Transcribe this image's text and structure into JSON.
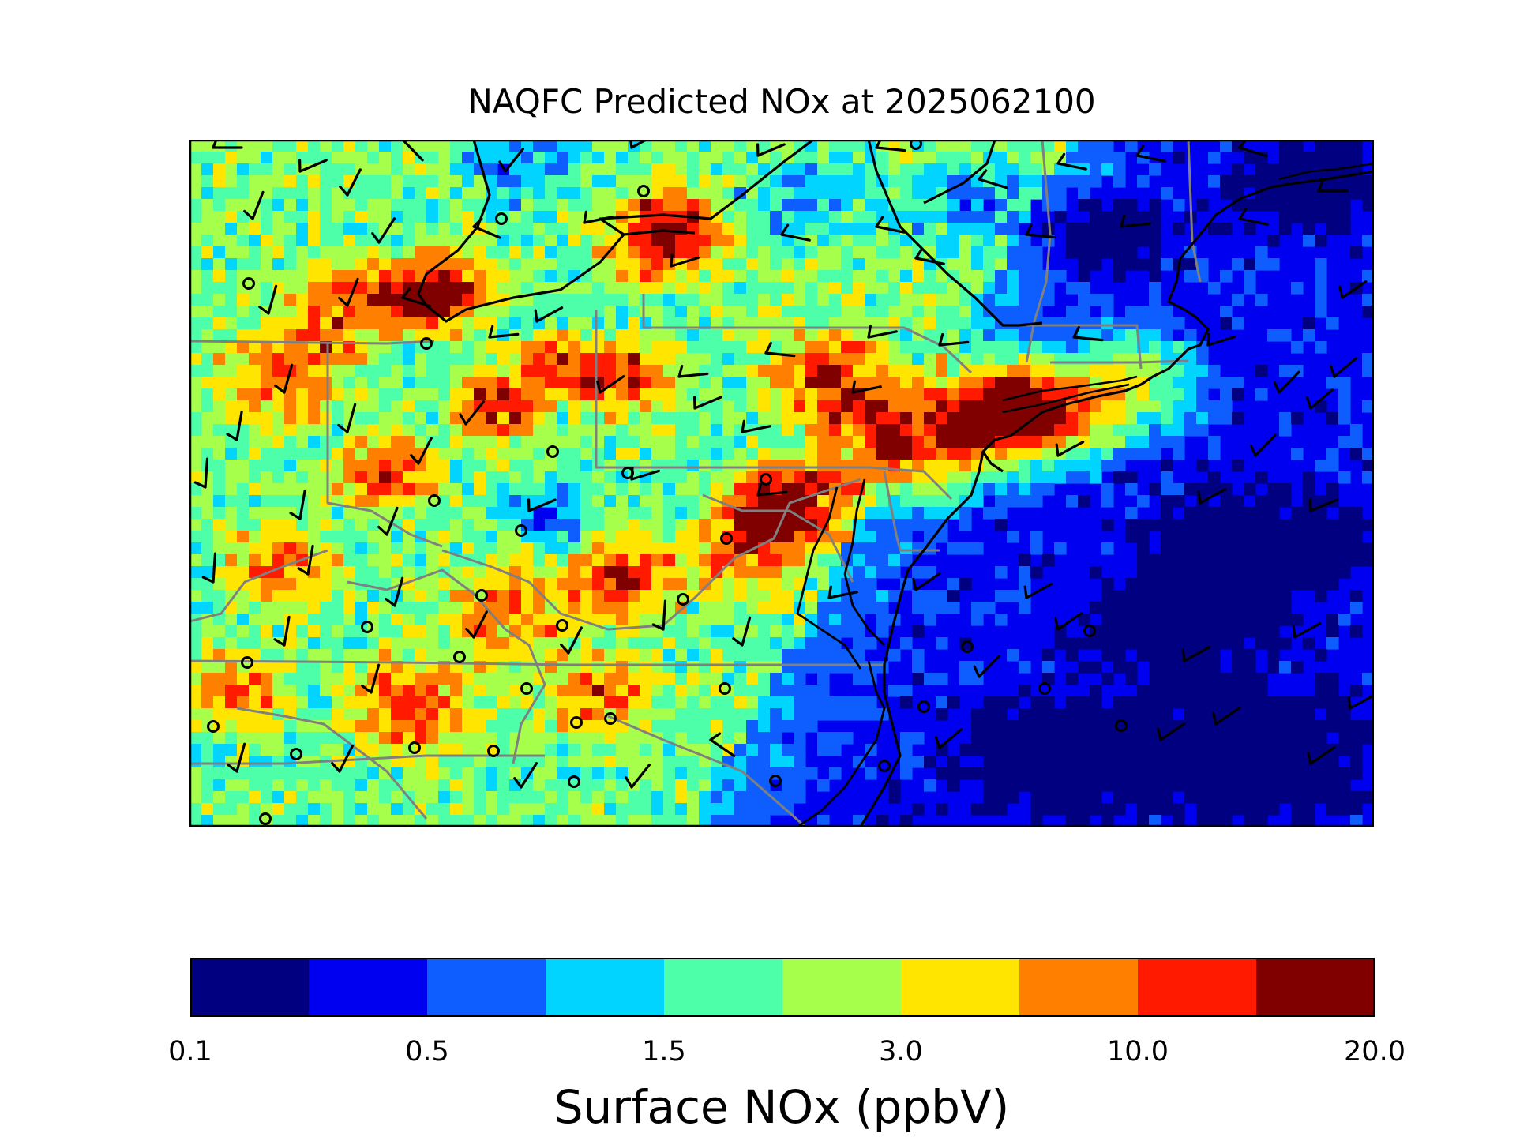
{
  "title": "NAQFC Predicted NOx at 2025062100",
  "colorbar": {
    "label": "Surface NOx (ppbV)",
    "tick_labels": [
      "0.1",
      "0.5",
      "1.5",
      "3.0",
      "10.0",
      "20.0"
    ],
    "colors": [
      "#000080",
      "#0000f1",
      "#0d5dff",
      "#00d4ff",
      "#4effa9",
      "#a6ff4a",
      "#ffe500",
      "#ff8000",
      "#ff1a00",
      "#800000"
    ]
  },
  "map": {
    "variable": "Surface NOx",
    "units": "ppbV",
    "land_boundary_color": "#000000",
    "state_boundary_color": "#808080",
    "wind_barbs": "black",
    "calm_station_marker": "circle"
  }
}
